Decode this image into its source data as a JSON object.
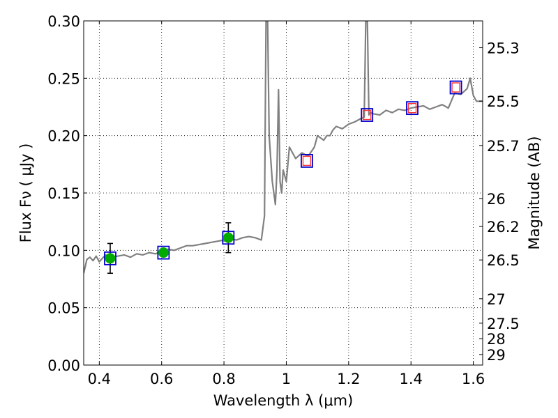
{
  "chart_data": {
    "type": "line",
    "title": "",
    "xlabel": "Wavelength  λ (μm)",
    "ylabel": "Flux  Fν  ( μJy )",
    "ylabel_right": "Magnitude (AB)",
    "xlim": [
      0.35,
      1.63
    ],
    "ylim": [
      0.0,
      0.3
    ],
    "grid": true,
    "x_ticks": [
      0.4,
      0.6,
      0.8,
      1.0,
      1.2,
      1.4,
      1.6
    ],
    "x_tick_labels": [
      "0.4",
      "0.6",
      "0.8",
      "1",
      "1.2",
      "1.4",
      "1.6"
    ],
    "y_ticks": [
      0.0,
      0.05,
      0.1,
      0.15,
      0.2,
      0.25,
      0.3
    ],
    "y_tick_labels": [
      "0.00",
      "0.05",
      "0.10",
      "0.15",
      "0.20",
      "0.25",
      "0.30"
    ],
    "right_ticks": [
      {
        "label": "25.3",
        "flux": 0.2766
      },
      {
        "label": "25.5",
        "flux": 0.2301
      },
      {
        "label": "25.7",
        "flux": 0.1914
      },
      {
        "label": "26",
        "flux": 0.1452
      },
      {
        "label": "26.2",
        "flux": 0.1208
      },
      {
        "label": "26.5",
        "flux": 0.0916
      },
      {
        "label": "27",
        "flux": 0.0578
      },
      {
        "label": "27.5",
        "flux": 0.0365
      },
      {
        "label": "28",
        "flux": 0.023
      },
      {
        "label": "29",
        "flux": 0.0092
      }
    ],
    "series": [
      {
        "name": "model spectrum",
        "color": "#808080",
        "x": [
          0.35,
          0.36,
          0.37,
          0.38,
          0.39,
          0.4,
          0.41,
          0.42,
          0.44,
          0.46,
          0.48,
          0.5,
          0.52,
          0.54,
          0.56,
          0.58,
          0.6,
          0.62,
          0.64,
          0.66,
          0.68,
          0.7,
          0.72,
          0.74,
          0.76,
          0.78,
          0.8,
          0.82,
          0.84,
          0.86,
          0.88,
          0.9,
          0.92,
          0.93,
          0.935,
          0.94,
          0.945,
          0.95,
          0.955,
          0.96,
          0.965,
          0.97,
          0.975,
          0.98,
          0.985,
          0.99,
          1.0,
          1.01,
          1.02,
          1.03,
          1.05,
          1.07,
          1.09,
          1.1,
          1.11,
          1.12,
          1.13,
          1.14,
          1.15,
          1.16,
          1.18,
          1.2,
          1.22,
          1.24,
          1.25,
          1.255,
          1.26,
          1.265,
          1.27,
          1.28,
          1.3,
          1.32,
          1.34,
          1.36,
          1.38,
          1.4,
          1.42,
          1.44,
          1.46,
          1.48,
          1.5,
          1.52,
          1.54,
          1.56,
          1.58,
          1.59,
          1.6,
          1.61,
          1.63
        ],
        "y": [
          0.08,
          0.092,
          0.094,
          0.091,
          0.095,
          0.09,
          0.093,
          0.096,
          0.094,
          0.095,
          0.096,
          0.094,
          0.097,
          0.096,
          0.098,
          0.097,
          0.099,
          0.101,
          0.1,
          0.102,
          0.104,
          0.104,
          0.105,
          0.106,
          0.107,
          0.108,
          0.109,
          0.11,
          0.109,
          0.111,
          0.112,
          0.111,
          0.109,
          0.13,
          0.3,
          0.3,
          0.2,
          0.18,
          0.16,
          0.15,
          0.14,
          0.17,
          0.24,
          0.16,
          0.15,
          0.17,
          0.16,
          0.19,
          0.185,
          0.18,
          0.185,
          0.182,
          0.19,
          0.2,
          0.198,
          0.196,
          0.2,
          0.2,
          0.205,
          0.208,
          0.206,
          0.21,
          0.212,
          0.215,
          0.216,
          0.3,
          0.3,
          0.218,
          0.22,
          0.219,
          0.218,
          0.222,
          0.22,
          0.223,
          0.222,
          0.224,
          0.225,
          0.226,
          0.223,
          0.225,
          0.227,
          0.224,
          0.237,
          0.236,
          0.241,
          0.25,
          0.235,
          0.23,
          0.23
        ]
      },
      {
        "name": "photometry (green circles)",
        "color": "#00aa00",
        "x": [
          0.435,
          0.606,
          0.814
        ],
        "y": [
          0.093,
          0.098,
          0.111
        ],
        "yerr": [
          0.013,
          0.0,
          0.013
        ]
      },
      {
        "name": "model photometry (blue squares)",
        "color": "#0000cc",
        "x": [
          0.435,
          0.606,
          0.814,
          1.066,
          1.259,
          1.404,
          1.544
        ],
        "y": [
          0.093,
          0.098,
          0.111,
          0.178,
          0.218,
          0.224,
          0.242
        ]
      },
      {
        "name": "photometry (red squares)",
        "color": "#ff3333",
        "x": [
          1.066,
          1.259,
          1.404,
          1.544
        ],
        "y": [
          0.178,
          0.218,
          0.224,
          0.242
        ]
      }
    ]
  }
}
